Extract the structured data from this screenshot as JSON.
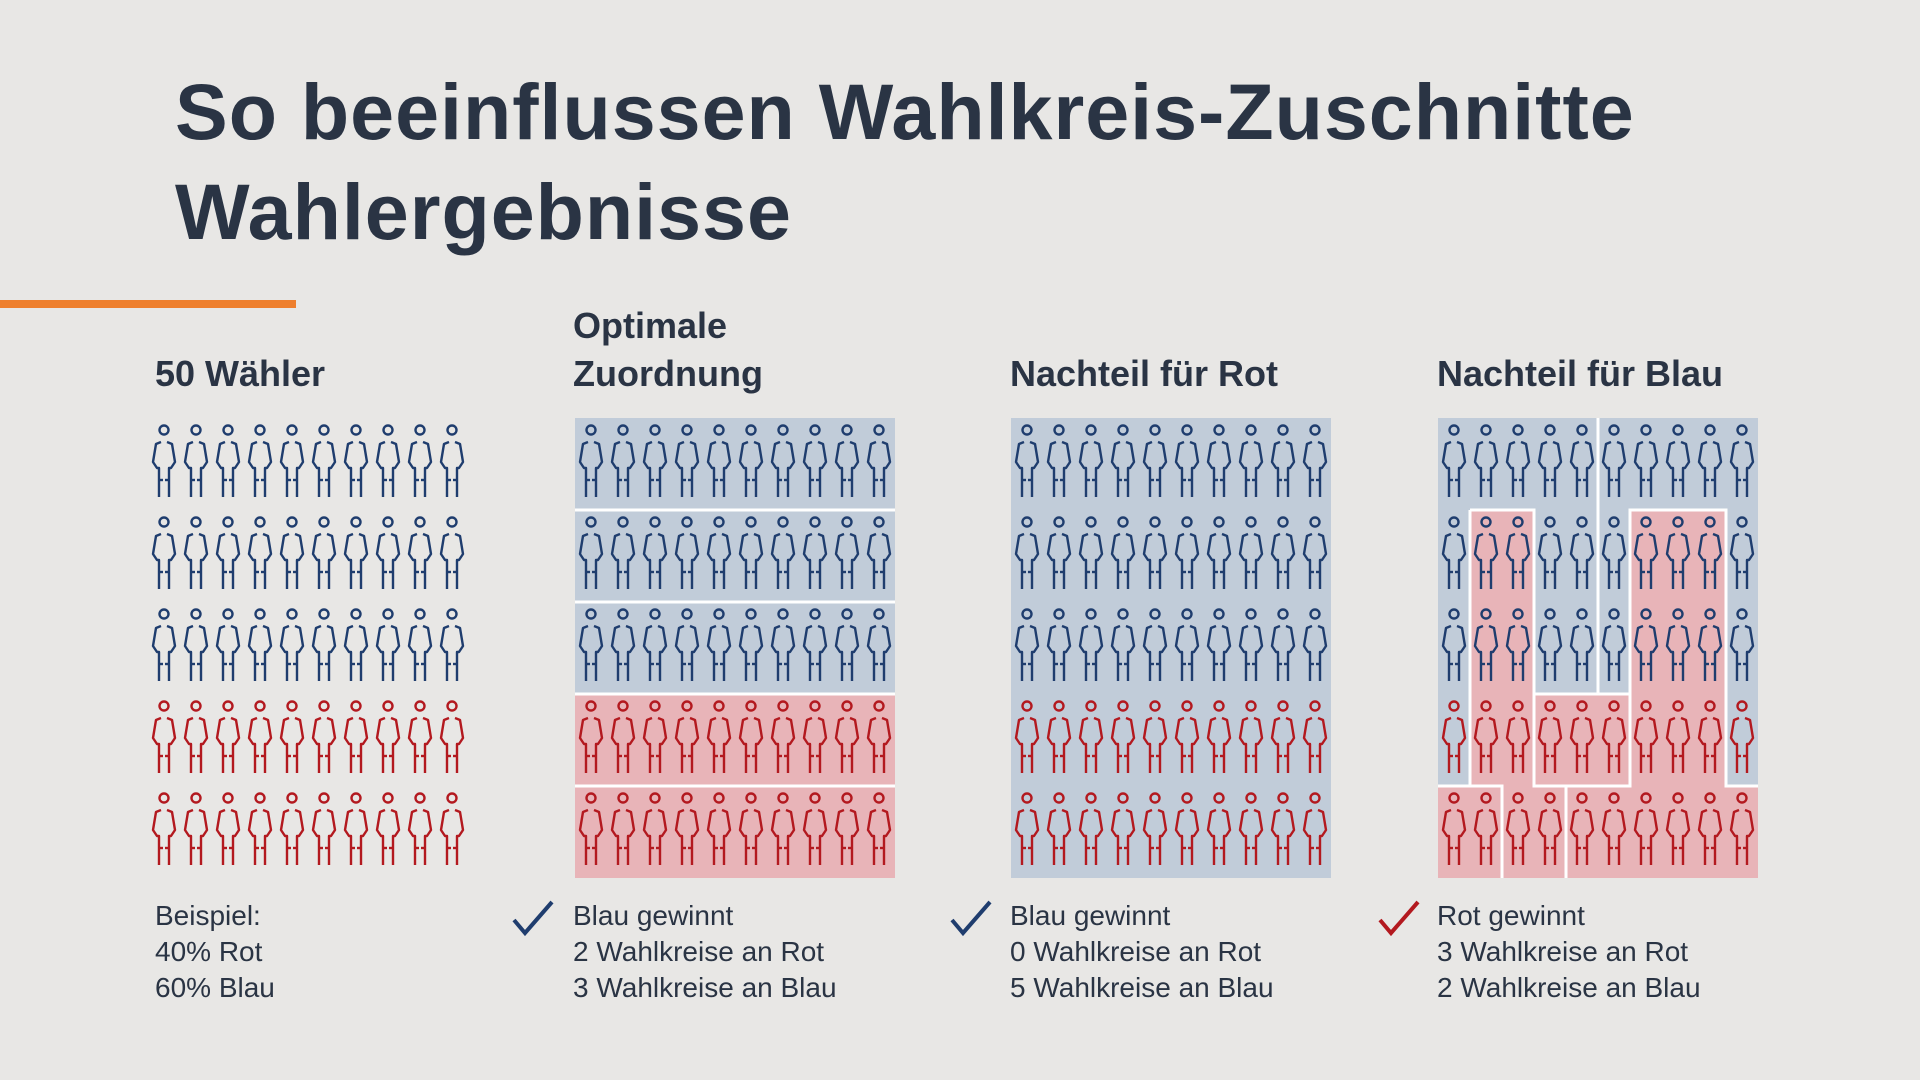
{
  "title": {
    "line1": "So beeinflussen Wahlkreis-Zuschnitte",
    "line2": "Wahlergebnisse"
  },
  "colors": {
    "background": "#e8e7e5",
    "text": "#2a3444",
    "accent": "#ee7f2d",
    "blue_voter": "#1f3d6e",
    "red_voter": "#b3191f",
    "blue_region": "#c1ccd9",
    "red_region": "#e8b4b8",
    "district_border": "#ffffff",
    "check_blue": "#1f3d6e",
    "check_red": "#b3191f"
  },
  "grid": {
    "rows": 5,
    "cols": 10,
    "total_voters": 50,
    "red_share_percent": 40,
    "blue_share_percent": 60
  },
  "panels": [
    {
      "id": "voters",
      "heading": [
        "50 Wähler"
      ],
      "caption": [
        "Beispiel:",
        "40% Rot",
        "60% Blau"
      ],
      "check": null
    },
    {
      "id": "optimal",
      "heading": [
        "Optimale",
        "Zuordnung"
      ],
      "caption": [
        "Blau gewinnt",
        "2 Wahlkreise an Rot",
        "3 Wahlkreise an Blau"
      ],
      "check": "check-blue-icon",
      "districts": [
        {
          "winner": "blue",
          "shape": "row 1"
        },
        {
          "winner": "blue",
          "shape": "row 2"
        },
        {
          "winner": "blue",
          "shape": "row 3"
        },
        {
          "winner": "red",
          "shape": "row 4"
        },
        {
          "winner": "red",
          "shape": "row 5"
        }
      ],
      "red_districts": 2,
      "blue_districts": 3
    },
    {
      "id": "nachteil-rot",
      "heading": [
        "Nachteil für Rot"
      ],
      "caption": [
        "Blau gewinnt",
        "0 Wahlkreise an Rot",
        "5 Wahlkreise an Blau"
      ],
      "check": "check-blue-icon",
      "red_districts": 0,
      "blue_districts": 5
    },
    {
      "id": "nachteil-blau",
      "heading": [
        "Nachteil für Blau"
      ],
      "caption": [
        "Rot gewinnt",
        "3 Wahlkreise an Rot",
        "2 Wahlkreise an Blau"
      ],
      "check": "check-red-icon",
      "red_districts": 3,
      "blue_districts": 2
    }
  ]
}
